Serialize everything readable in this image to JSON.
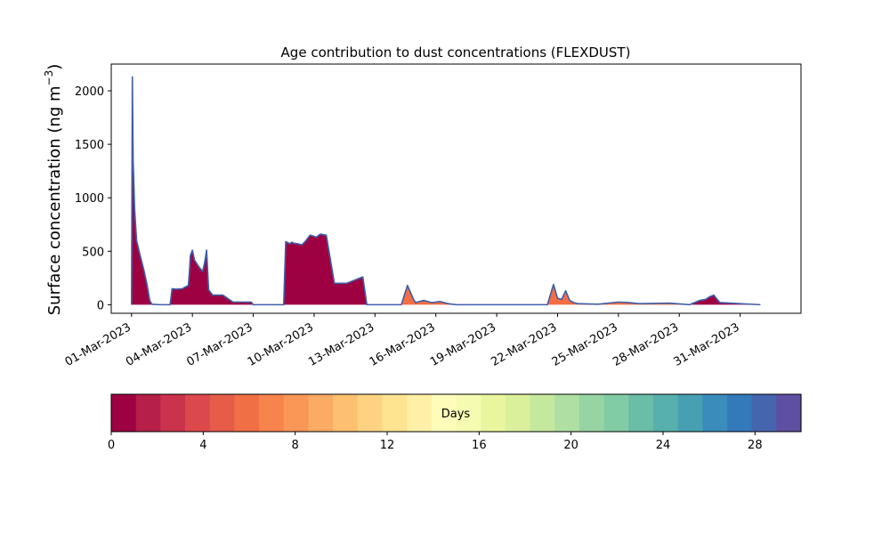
{
  "chart_data": {
    "type": "area",
    "title": "Age contribution to dust concentrations (FLEXDUST)",
    "ylabel": "Surface concentration (ng m",
    "ylabel_exponent": "−3",
    "ylabel_close": ")",
    "x_start": "2023-03-01",
    "xlim_days": [
      -1,
      33
    ],
    "xlim": [
      "2023-02-28",
      "2023-04-03"
    ],
    "ylim": [
      -80,
      2250
    ],
    "yticks": [
      0,
      500,
      1000,
      1500,
      2000
    ],
    "xticks": [
      {
        "day": 0,
        "label": "01-Mar-2023"
      },
      {
        "day": 3,
        "label": "04-Mar-2023"
      },
      {
        "day": 6,
        "label": "07-Mar-2023"
      },
      {
        "day": 9,
        "label": "10-Mar-2023"
      },
      {
        "day": 12,
        "label": "13-Mar-2023"
      },
      {
        "day": 15,
        "label": "16-Mar-2023"
      },
      {
        "day": 18,
        "label": "19-Mar-2023"
      },
      {
        "day": 21,
        "label": "22-Mar-2023"
      },
      {
        "day": 24,
        "label": "25-Mar-2023"
      },
      {
        "day": 27,
        "label": "28-Mar-2023"
      },
      {
        "day": 30,
        "label": "31-Mar-2023"
      }
    ],
    "stack_colors": {
      "age_0_1": "#9e0142",
      "age_5_6": "#f46d43",
      "total_line": "#3f5fa8"
    },
    "series": [
      {
        "x_days": [
          0,
          0.04,
          0.08,
          0.15,
          0.25,
          0.4,
          0.6,
          0.75,
          0.9,
          1.0,
          1.4,
          1.9,
          2.0,
          2.2,
          2.5,
          2.8,
          2.85,
          2.9,
          3.0,
          3.1,
          3.3,
          3.5,
          3.6,
          3.7,
          3.8,
          4.0,
          4.5,
          5.0,
          5.5,
          5.9,
          6.0,
          6.3,
          7.0,
          7.5,
          7.6,
          7.7,
          7.8,
          7.9,
          8.0,
          8.2,
          8.4,
          8.6,
          8.8,
          9.0,
          9.1,
          9.3,
          9.6,
          10.0,
          10.6,
          11.4,
          11.6,
          11.9,
          12.0,
          14.0,
          17.0,
          20.0,
          23.0,
          26.0,
          27.0,
          27.5,
          28.0,
          28.3,
          28.5,
          28.7,
          29.0,
          31.0
        ],
        "y": [
          0,
          2130,
          1350,
          900,
          600,
          480,
          330,
          200,
          40,
          5,
          0,
          0,
          150,
          145,
          150,
          180,
          300,
          460,
          510,
          420,
          360,
          310,
          390,
          510,
          140,
          90,
          90,
          25,
          25,
          25,
          0,
          0,
          0,
          0,
          590,
          580,
          570,
          585,
          575,
          570,
          560,
          600,
          650,
          640,
          630,
          660,
          650,
          200,
          200,
          260,
          0,
          0,
          0,
          0,
          0,
          0,
          0,
          0,
          0,
          0,
          40,
          50,
          75,
          90,
          20,
          0
        ]
      },
      {
        "x_days": [
          12.2,
          13.0,
          13.3,
          13.6,
          13.9,
          14.0,
          14.4,
          14.8,
          15.2,
          15.6,
          16.0,
          20.0,
          20.5,
          20.8,
          21.0,
          21.2,
          21.4,
          21.6,
          21.8,
          22.0,
          23.0,
          24.0,
          24.5,
          25.0,
          26.5,
          27.5
        ],
        "y": [
          0,
          0,
          0,
          180,
          50,
          20,
          40,
          20,
          30,
          10,
          0,
          0,
          0,
          190,
          60,
          50,
          130,
          40,
          20,
          10,
          5,
          25,
          20,
          10,
          15,
          0
        ]
      }
    ],
    "colorbar": {
      "label": "Days",
      "range": [
        0,
        30
      ],
      "ticks": [
        0,
        4,
        8,
        12,
        16,
        20,
        24,
        28
      ],
      "colors": [
        "#9e0142",
        "#b51f48",
        "#cb334c",
        "#dc494c",
        "#e55c49",
        "#f06f45",
        "#f7834d",
        "#fa9656",
        "#fcab63",
        "#fdc070",
        "#fdd381",
        "#fee391",
        "#fef0a6",
        "#fffcba",
        "#f6fbb2",
        "#eaf69e",
        "#daf09a",
        "#c5e89f",
        "#b0dfa2",
        "#97d4a4",
        "#81cca4",
        "#6abda7",
        "#58b0ad",
        "#47a0b2",
        "#3a8dbb",
        "#347abb",
        "#4566ae",
        "#5e4fa2"
      ]
    }
  }
}
